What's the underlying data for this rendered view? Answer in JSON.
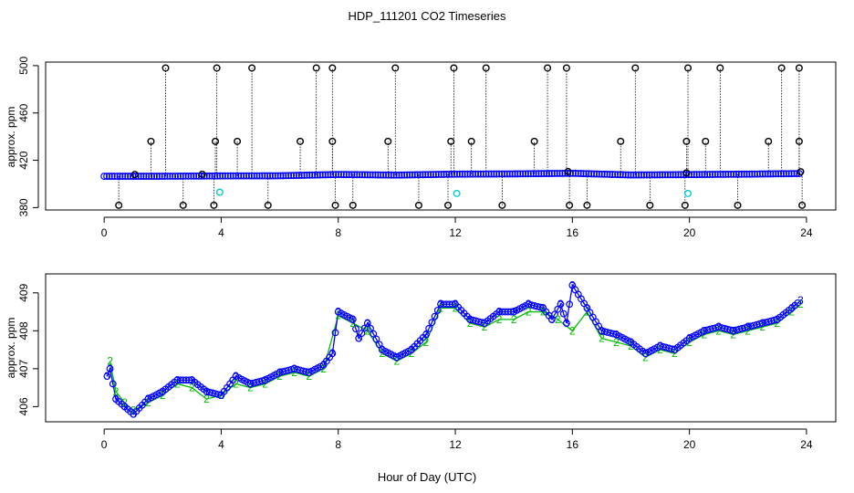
{
  "colors": {
    "blue": "#0000ff",
    "green": "#00bb00",
    "cyan": "#00cccc",
    "black": "#000000"
  },
  "chart_data": [
    {
      "type": "scatter",
      "title": "HDP_111201  CO2 Timeseries",
      "xlabel": "",
      "ylabel": "approx. ppm",
      "xlim": [
        -2,
        25
      ],
      "ylim": [
        378,
        503
      ],
      "xticks": [
        0,
        4,
        8,
        12,
        16,
        20,
        24
      ],
      "yticks": [
        380,
        420,
        460,
        500
      ],
      "baseline": {
        "x": [
          0.0,
          2.0,
          4.0,
          6.0,
          8.0,
          10.0,
          12.0,
          14.0,
          16.0,
          18.0,
          20.0,
          22.0,
          23.8
        ],
        "y": [
          406.5,
          406.5,
          406.8,
          406.9,
          408.0,
          407.5,
          408.3,
          408.5,
          409.0,
          407.6,
          407.9,
          408.3,
          408.8
        ]
      },
      "outliers_high": [
        2.1,
        3.85,
        5.05,
        7.25,
        7.8,
        9.95,
        11.95,
        13.05,
        15.15,
        15.8,
        18.15,
        19.95,
        21.05,
        23.15,
        23.75
      ],
      "outliers_mid": [
        1.6,
        3.8,
        4.55,
        6.7,
        7.8,
        9.7,
        11.85,
        12.55,
        14.7,
        17.65,
        19.9,
        20.55,
        22.7,
        23.75
      ],
      "outliers_low": [
        0.5,
        2.7,
        3.75,
        5.6,
        7.9,
        8.5,
        10.75,
        11.75,
        13.6,
        15.9,
        16.5,
        18.65,
        19.85,
        21.65,
        23.85
      ],
      "cyan_points": [
        [
          3.95,
          393
        ],
        [
          12.05,
          392
        ],
        [
          19.95,
          392
        ]
      ]
    },
    {
      "type": "line",
      "title": "",
      "xlabel": "Hour of Day (UTC)",
      "ylabel": "approx. ppm",
      "xlim": [
        -2,
        25
      ],
      "ylim": [
        405.6,
        409.5
      ],
      "xticks": [
        0,
        4,
        8,
        12,
        16,
        20,
        24
      ],
      "yticks": [
        406,
        407,
        408,
        409
      ],
      "series": [
        {
          "name": "3",
          "label": "3",
          "x": [
            0.1,
            0.2,
            0.4,
            0.7,
            1.0,
            1.5,
            2.0,
            2.5,
            3.0,
            3.5,
            4.0,
            4.5,
            5.0,
            5.5,
            6.0,
            6.5,
            7.0,
            7.5,
            7.8,
            8.0,
            8.5,
            8.7,
            9.0,
            9.5,
            10.0,
            10.5,
            11.0,
            11.5,
            12.0,
            12.5,
            13.0,
            13.5,
            14.0,
            14.5,
            15.0,
            15.3,
            15.6,
            15.8,
            16.0,
            16.5,
            17.0,
            17.5,
            18.0,
            18.5,
            19.0,
            19.5,
            20.0,
            20.5,
            21.0,
            21.5,
            22.0,
            22.5,
            23.0,
            23.5,
            23.8
          ],
          "y": [
            406.8,
            407.0,
            406.2,
            406.0,
            405.8,
            406.2,
            406.4,
            406.7,
            406.7,
            406.4,
            406.3,
            406.8,
            406.6,
            406.7,
            406.9,
            407.0,
            406.9,
            407.1,
            407.4,
            408.5,
            408.3,
            407.8,
            408.2,
            407.5,
            407.3,
            407.5,
            407.9,
            408.7,
            408.7,
            408.3,
            408.2,
            408.5,
            408.5,
            408.7,
            408.6,
            408.3,
            408.7,
            408.2,
            409.2,
            408.6,
            408.0,
            407.9,
            407.7,
            407.4,
            407.6,
            407.5,
            407.8,
            408.0,
            408.1,
            408.0,
            408.1,
            408.2,
            408.3,
            408.6,
            408.8
          ]
        },
        {
          "name": "2",
          "label": "2",
          "x": [
            0.2,
            0.4,
            0.7,
            1.0,
            1.5,
            2.0,
            2.5,
            3.0,
            3.5,
            4.0,
            4.5,
            5.0,
            5.5,
            6.0,
            6.5,
            7.0,
            7.5,
            8.0,
            8.5,
            9.0,
            9.5,
            10.0,
            10.5,
            11.0,
            11.5,
            12.0,
            12.5,
            13.0,
            13.5,
            14.0,
            14.5,
            15.0,
            15.5,
            16.0,
            16.5,
            17.0,
            17.5,
            18.0,
            18.5,
            19.0,
            19.5,
            20.0,
            20.5,
            21.0,
            21.5,
            22.0,
            22.5,
            23.0,
            23.5,
            23.8
          ],
          "y": [
            407.2,
            406.4,
            406.1,
            405.9,
            406.1,
            406.3,
            406.6,
            406.5,
            406.2,
            406.3,
            406.6,
            406.5,
            406.6,
            406.8,
            406.9,
            406.8,
            407.0,
            408.4,
            408.2,
            408.0,
            407.4,
            407.2,
            407.4,
            407.7,
            408.6,
            408.6,
            408.2,
            408.1,
            408.3,
            408.3,
            408.5,
            408.5,
            408.3,
            408.0,
            408.5,
            407.8,
            407.7,
            407.6,
            407.3,
            407.5,
            407.4,
            407.7,
            407.9,
            408.0,
            407.9,
            408.0,
            408.1,
            408.2,
            408.5,
            408.7
          ]
        }
      ]
    }
  ]
}
